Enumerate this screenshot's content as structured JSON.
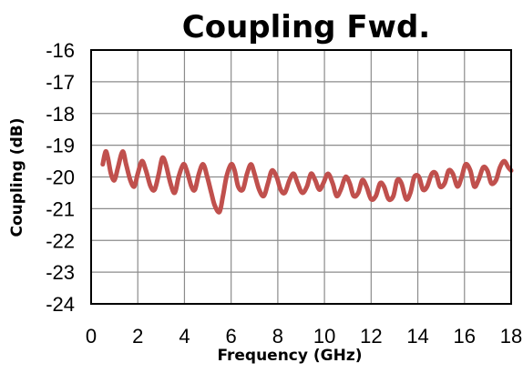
{
  "chart_data": {
    "type": "line",
    "title": "Coupling Fwd.",
    "xlabel": "Frequency (GHz)",
    "ylabel": "Coupling (dB)",
    "xlim": [
      0,
      18
    ],
    "ylim": [
      -24,
      -16
    ],
    "x_ticks": [
      0,
      2,
      4,
      6,
      8,
      10,
      12,
      14,
      16,
      18
    ],
    "y_ticks": [
      -16,
      -17,
      -18,
      -19,
      -20,
      -21,
      -22,
      -23,
      -24
    ],
    "grid": true,
    "series": [
      {
        "color": "#c0504d",
        "x": [
          0.5,
          0.62,
          0.72,
          0.85,
          1.0,
          1.15,
          1.35,
          1.5,
          1.68,
          1.85,
          2.0,
          2.18,
          2.35,
          2.55,
          2.72,
          2.9,
          3.05,
          3.2,
          3.4,
          3.58,
          3.75,
          3.95,
          4.1,
          4.3,
          4.45,
          4.62,
          4.8,
          4.98,
          5.15,
          5.3,
          5.5,
          5.65,
          5.8,
          6.0,
          6.15,
          6.3,
          6.5,
          6.68,
          6.85,
          7.0,
          7.2,
          7.4,
          7.58,
          7.75,
          7.95,
          8.12,
          8.3,
          8.5,
          8.68,
          8.85,
          9.05,
          9.25,
          9.42,
          9.6,
          9.78,
          9.95,
          10.15,
          10.35,
          10.52,
          10.7,
          10.9,
          11.08,
          11.25,
          11.45,
          11.62,
          11.8,
          12.0,
          12.2,
          12.38,
          12.55,
          12.75,
          12.95,
          13.12,
          13.3,
          13.5,
          13.68,
          13.85,
          14.05,
          14.22,
          14.4,
          14.6,
          14.78,
          14.95,
          15.15,
          15.32,
          15.5,
          15.7,
          15.88,
          16.05,
          16.25,
          16.42,
          16.6,
          16.8,
          16.98,
          17.15,
          17.35,
          17.52,
          17.7,
          17.88,
          18.0
        ],
        "y": [
          -19.6,
          -19.2,
          -19.4,
          -19.9,
          -20.1,
          -19.7,
          -19.2,
          -19.6,
          -20.1,
          -20.3,
          -19.9,
          -19.5,
          -19.8,
          -20.3,
          -20.4,
          -19.9,
          -19.4,
          -19.6,
          -20.2,
          -20.5,
          -20.0,
          -19.6,
          -19.8,
          -20.3,
          -20.4,
          -19.9,
          -19.6,
          -20.0,
          -20.5,
          -20.9,
          -21.1,
          -20.6,
          -20.0,
          -19.6,
          -19.8,
          -20.3,
          -20.4,
          -19.9,
          -19.6,
          -19.9,
          -20.4,
          -20.6,
          -20.2,
          -19.8,
          -20.0,
          -20.4,
          -20.5,
          -20.1,
          -19.9,
          -20.2,
          -20.5,
          -20.3,
          -19.9,
          -20.1,
          -20.4,
          -20.2,
          -19.9,
          -20.2,
          -20.6,
          -20.4,
          -20.0,
          -20.2,
          -20.6,
          -20.5,
          -20.1,
          -20.3,
          -20.7,
          -20.6,
          -20.2,
          -20.3,
          -20.7,
          -20.6,
          -20.1,
          -20.2,
          -20.7,
          -20.5,
          -20.0,
          -20.0,
          -20.4,
          -20.3,
          -19.9,
          -19.9,
          -20.3,
          -20.2,
          -19.8,
          -19.9,
          -20.3,
          -20.0,
          -19.6,
          -19.8,
          -20.3,
          -20.1,
          -19.7,
          -19.8,
          -20.2,
          -20.1,
          -19.7,
          -19.5,
          -19.7,
          -19.8
        ]
      }
    ]
  }
}
